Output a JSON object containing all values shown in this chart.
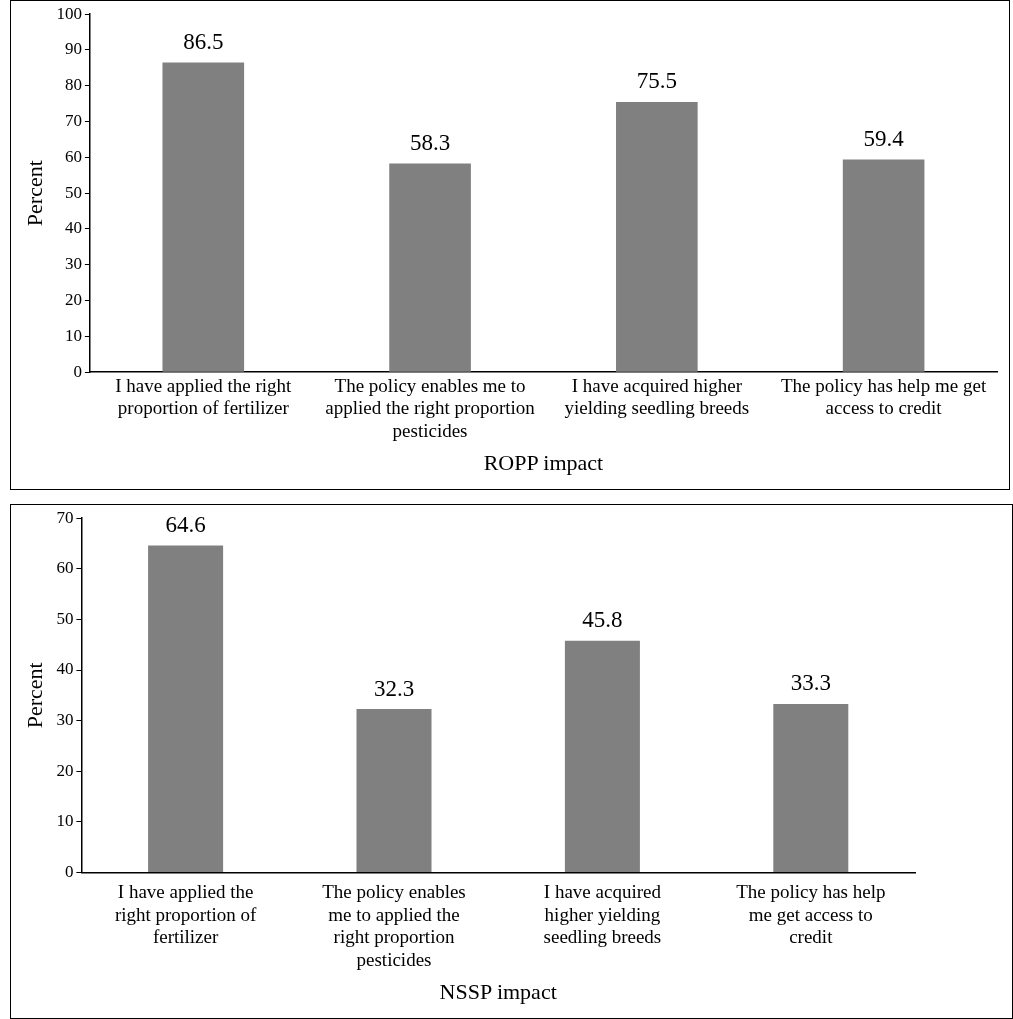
{
  "chart_data": [
    {
      "type": "bar",
      "categories": [
        "I have applied the right proportion of fertilizer",
        "The policy enables me to applied the right proportion pesticides",
        "I have acquired higher yielding seedling breeds",
        "The policy has help me get access to credit"
      ],
      "values": [
        86.5,
        58.3,
        75.5,
        59.4
      ],
      "color": "#808080",
      "ylim": [
        0,
        100
      ],
      "yticks": [
        0,
        10,
        20,
        30,
        40,
        50,
        60,
        70,
        80,
        90,
        100
      ],
      "ylabel": "Percent",
      "xlabel": "ROPP impact",
      "data_labels": true,
      "grid": false,
      "legend": false
    },
    {
      "type": "bar",
      "categories": [
        "I have applied the right proportion of fertilizer",
        "The policy enables me to applied the right proportion pesticides",
        "I have acquired higher yielding seedling breeds",
        "The policy has help me get access to credit"
      ],
      "values": [
        64.6,
        32.3,
        45.8,
        33.3
      ],
      "color": "#808080",
      "ylim": [
        0,
        70
      ],
      "yticks": [
        0,
        10,
        20,
        30,
        40,
        50,
        60,
        70
      ],
      "ylabel": "Percent",
      "xlabel": "NSSP impact",
      "data_labels": true,
      "grid": false,
      "legend": false
    }
  ]
}
